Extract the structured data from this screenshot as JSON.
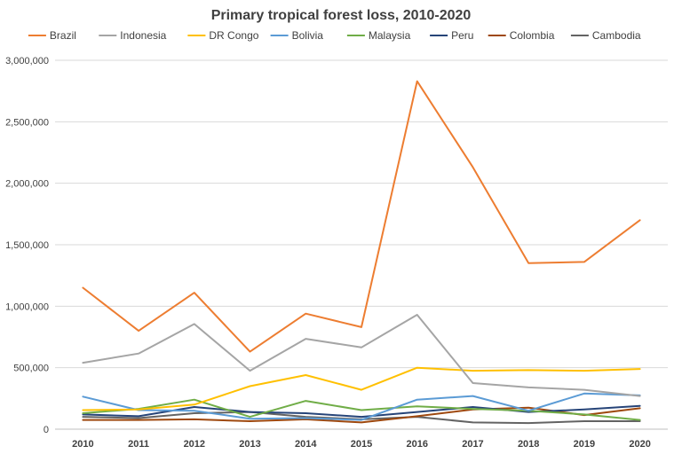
{
  "chart_data": {
    "type": "line",
    "title": "Primary tropical forest loss, 2010-2020",
    "xlabel": "",
    "ylabel": "",
    "ylim": [
      0,
      3000000
    ],
    "yticks": [
      0,
      500000,
      1000000,
      1500000,
      2000000,
      2500000,
      3000000
    ],
    "ytick_labels": [
      "0",
      "500,000",
      "1,000,000",
      "1,500,000",
      "2,000,000",
      "2,500,000",
      "3,000,000"
    ],
    "x": [
      "2010",
      "2011",
      "2012",
      "2013",
      "2014",
      "2015",
      "2016",
      "2017",
      "2018",
      "2019",
      "2020"
    ],
    "grid": "horizontal",
    "legend_position": "top",
    "series": [
      {
        "name": "Brazil",
        "color": "#ED7D31",
        "values": [
          1150000,
          800000,
          1110000,
          630000,
          940000,
          830000,
          2830000,
          2130000,
          1350000,
          1360000,
          1700000
        ]
      },
      {
        "name": "Indonesia",
        "color": "#A5A5A5",
        "values": [
          540000,
          615000,
          855000,
          475000,
          735000,
          665000,
          930000,
          375000,
          340000,
          320000,
          270000
        ]
      },
      {
        "name": "DR Congo",
        "color": "#FFC000",
        "values": [
          155000,
          160000,
          200000,
          350000,
          440000,
          320000,
          500000,
          475000,
          480000,
          475000,
          490000
        ]
      },
      {
        "name": "Bolivia",
        "color": "#5B9BD5",
        "values": [
          265000,
          155000,
          150000,
          85000,
          90000,
          75000,
          240000,
          270000,
          150000,
          290000,
          275000
        ]
      },
      {
        "name": "Malaysia",
        "color": "#70AD47",
        "values": [
          130000,
          165000,
          240000,
          100000,
          230000,
          155000,
          185000,
          165000,
          150000,
          120000,
          75000
        ]
      },
      {
        "name": "Peru",
        "color": "#264478",
        "values": [
          120000,
          105000,
          180000,
          140000,
          130000,
          100000,
          140000,
          180000,
          140000,
          160000,
          190000
        ]
      },
      {
        "name": "Colombia",
        "color": "#9E480E",
        "values": [
          75000,
          75000,
          80000,
          65000,
          80000,
          55000,
          105000,
          160000,
          175000,
          115000,
          170000
        ]
      },
      {
        "name": "Cambodia",
        "color": "#636363",
        "values": [
          100000,
          90000,
          130000,
          140000,
          100000,
          80000,
          100000,
          55000,
          50000,
          65000,
          65000
        ]
      }
    ]
  }
}
